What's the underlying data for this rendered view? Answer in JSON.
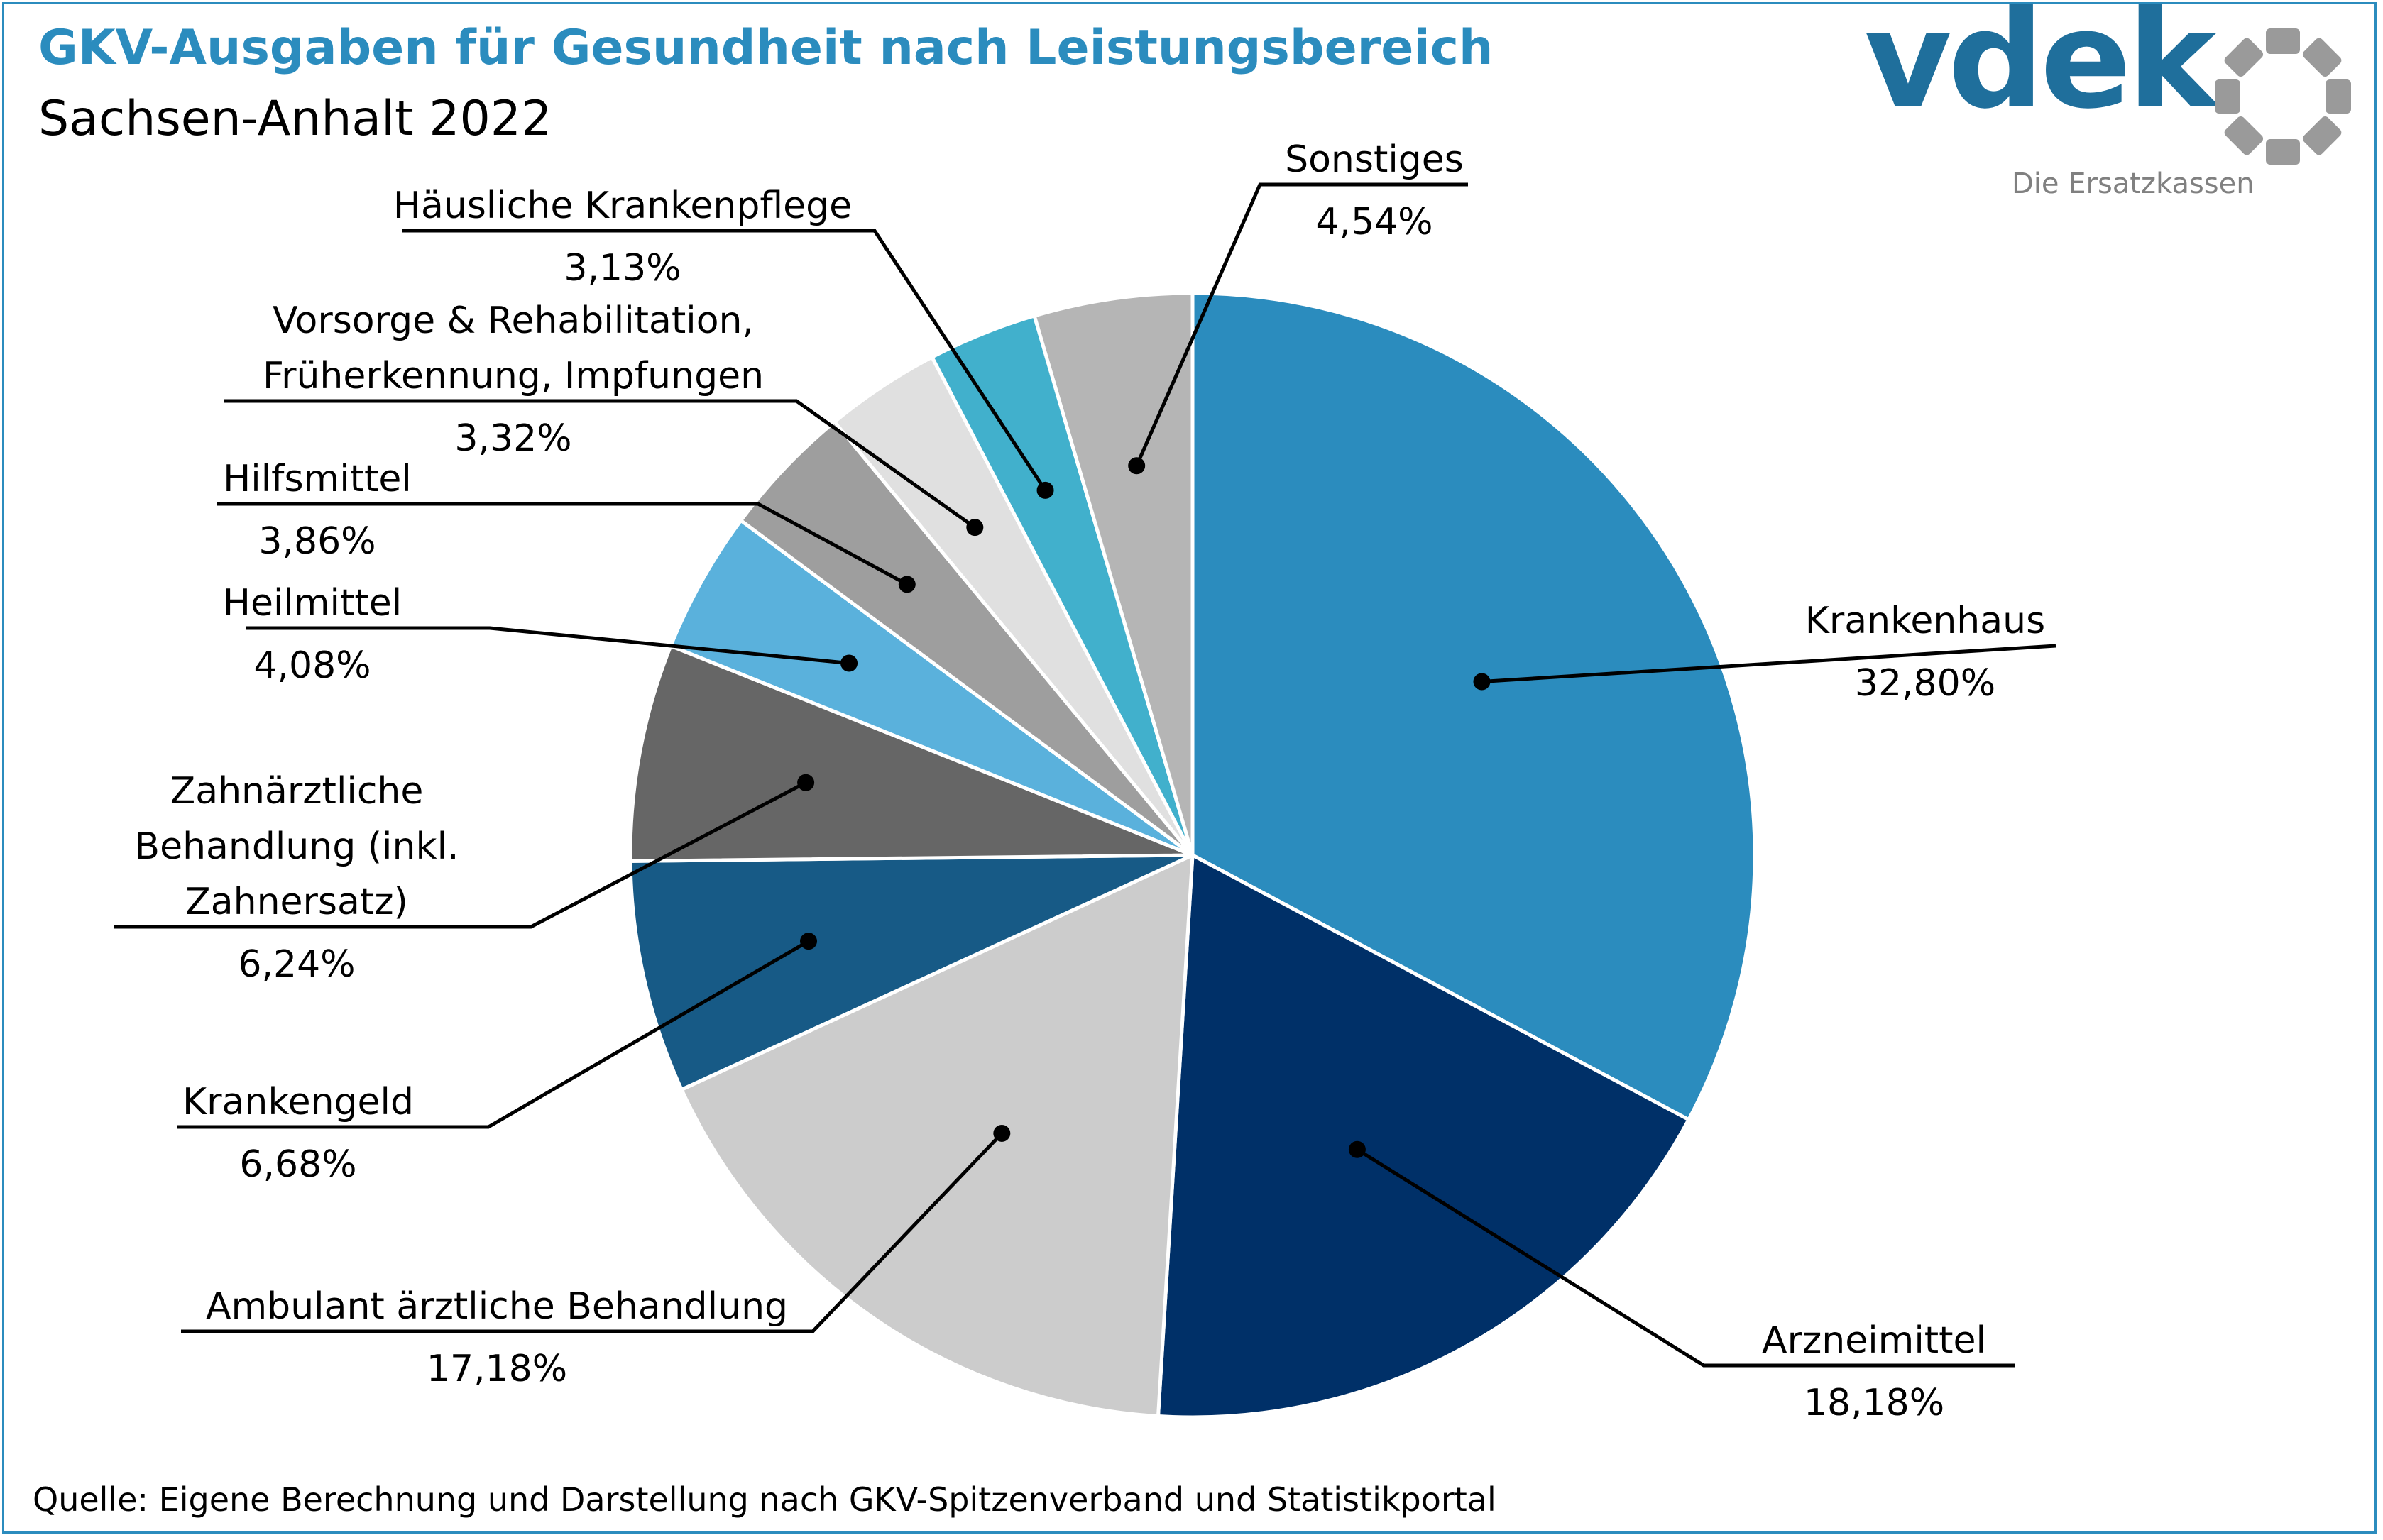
{
  "header": {
    "title": "GKV-Ausgaben für Gesundheit nach Leistungsbereich",
    "subtitle": "Sachsen-Anhalt 2022"
  },
  "logo": {
    "wordmark": "vdek",
    "tagline": "Die Ersatzkassen",
    "word_color": "#1f6f9c",
    "ring_color": "#9a9a9a",
    "ring_icon": "segmented-ring-icon"
  },
  "footer": {
    "source": "Quelle: Eigene Berechnung und Darstellung nach GKV-Spitzenverband und Statistikportal"
  },
  "colors": {
    "accent": "#2b8cbe",
    "border": "#2b8cbe"
  },
  "chart_data": {
    "type": "pie",
    "title": "GKV-Ausgaben für Gesundheit nach Leistungsbereich",
    "subtitle": "Sachsen-Anhalt 2022",
    "unit": "%",
    "start": "12 o'clock",
    "direction": "clockwise",
    "legend": "none (callout labels)",
    "slices": [
      {
        "label": "Krankenhaus",
        "value": 32.8,
        "display": "32,80%",
        "color": "#2b8cbe"
      },
      {
        "label": "Arzneimittel",
        "value": 18.18,
        "display": "18,18%",
        "color": "#003068"
      },
      {
        "label": "Ambulant ärztliche Behandlung",
        "value": 17.18,
        "display": "17,18%",
        "color": "#cccccc"
      },
      {
        "label": "Krankengeld",
        "value": 6.68,
        "display": "6,68%",
        "color": "#175a86"
      },
      {
        "label": "Zahnärztliche Behandlung (inkl. Zahnersatz)",
        "label_lines": [
          "Zahnärztliche",
          "Behandlung (inkl.",
          "Zahnersatz)"
        ],
        "value": 6.24,
        "display": "6,24%",
        "color": "#666666"
      },
      {
        "label": "Heilmittel",
        "value": 4.08,
        "display": "4,08%",
        "color": "#5ab1dc"
      },
      {
        "label": "Hilfsmittel",
        "value": 3.86,
        "display": "3,86%",
        "color": "#9e9e9e"
      },
      {
        "label": "Vorsorge & Rehabilitation, Früherkennung, Impfungen",
        "label_lines": [
          "Vorsorge & Rehabilitation,",
          "Früherkennung, Impfungen"
        ],
        "value": 3.32,
        "display": "3,32%",
        "color": "#e0e0e0"
      },
      {
        "label": "Häusliche Krankenpflege",
        "value": 3.13,
        "display": "3,13%",
        "color": "#41b0cc"
      },
      {
        "label": "Sonstiges",
        "value": 4.54,
        "display": "4,54%",
        "color": "#b5b5b5"
      }
    ]
  }
}
